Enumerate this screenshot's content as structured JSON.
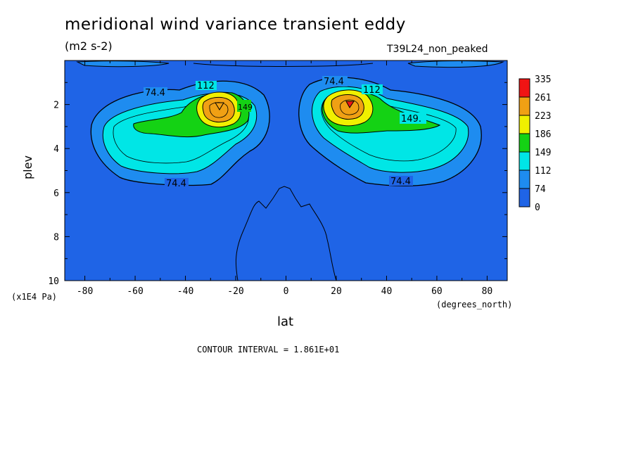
{
  "chart_data": {
    "type": "heatmap",
    "title": "meridional wind variance transient eddy",
    "units": "(m2 s-2)",
    "run_label": "T39L24_non_peaked",
    "xlabel": "lat",
    "x_unit": "(degrees_north)",
    "ylabel": "plev",
    "y_unit": "(x1E4 Pa)",
    "x_ticks": [
      "-80",
      "-60",
      "-40",
      "-20",
      "0",
      "20",
      "40",
      "60",
      "80"
    ],
    "y_ticks": [
      "2",
      "4",
      "6",
      "8",
      "10"
    ],
    "xlim": [
      -88,
      88
    ],
    "ylim": [
      10,
      0
    ],
    "levels": [
      0,
      74,
      112,
      149,
      186,
      223,
      261,
      335
    ],
    "level_labels": [
      "0",
      "74",
      "112",
      "149",
      "186",
      "223",
      "261",
      "335"
    ],
    "level_colors": [
      "#1f64e6",
      "#1e8cf0",
      "#00e6e6",
      "#14d214",
      "#f0f000",
      "#f0a014",
      "#f01414"
    ],
    "contour_labels": [
      "74.4",
      "112",
      "149",
      "149.",
      "74.4",
      "112",
      "74.4",
      "74.4"
    ],
    "contour_interval": "CONTOUR INTERVAL = 1.861E+01",
    "maxima": [
      {
        "lat": -25,
        "plev": 2.2,
        "value": 261
      },
      {
        "lat": 27,
        "plev": 2.2,
        "value": 261
      }
    ]
  }
}
